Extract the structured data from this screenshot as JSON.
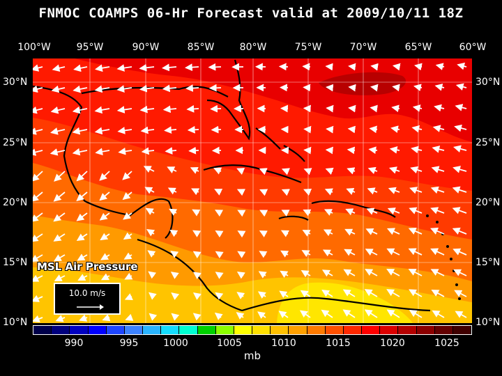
{
  "title": "FNMOC COAMPS 06-Hr Forecast valid at 2009/10/11 18Z",
  "field_label": "MSL Air Pressure",
  "reference_vector": {
    "label": "10.0 m/s"
  },
  "lon_labels": [
    "100°W",
    "95°W",
    "90°W",
    "85°W",
    "80°W",
    "75°W",
    "70°W",
    "65°W",
    "60°W"
  ],
  "lat_labels": [
    "30°N",
    "25°N",
    "20°N",
    "15°N",
    "10°N"
  ],
  "colorbar": {
    "unit": "mb",
    "ticks": [
      "990",
      "995",
      "1000",
      "1005",
      "1010",
      "1015",
      "1020",
      "1025"
    ],
    "colors": [
      "#00004a",
      "#00007e",
      "#0000c0",
      "#0000ff",
      "#1e46ff",
      "#3c82ff",
      "#2ab4ff",
      "#14dcff",
      "#00ffd2",
      "#00d200",
      "#8cff00",
      "#ffff00",
      "#ffe000",
      "#ffc000",
      "#ffa000",
      "#ff7a00",
      "#ff5000",
      "#ff2800",
      "#ff0000",
      "#dc0000",
      "#b40000",
      "#8c0000",
      "#640000",
      "#400000"
    ]
  },
  "map_colors": {
    "p1008": "#ffe600",
    "p1010": "#ffc400",
    "p1012": "#ff9a00",
    "p1014": "#ff6a00",
    "p1016": "#ff3a00",
    "p1018": "#ff1a00",
    "p1020": "#e80000",
    "p1022": "#b80000"
  }
}
